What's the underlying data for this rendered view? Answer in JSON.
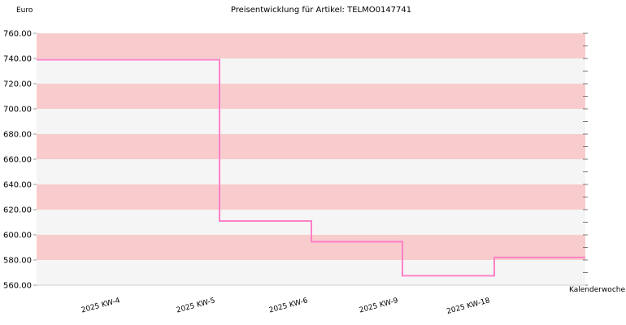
{
  "chart_data": {
    "type": "line",
    "step": true,
    "title": "Preisentwicklung für Artikel: TELMO0147741",
    "ylabel": "Euro",
    "xlabel": "Kalenderwoche",
    "ylim": [
      560,
      760
    ],
    "yticks": [
      "560.00",
      "580.00",
      "600.00",
      "620.00",
      "640.00",
      "660.00",
      "680.00",
      "700.00",
      "720.00",
      "740.00",
      "760.00"
    ],
    "categories": [
      "2025 KW-4",
      "2025 KW-5",
      "2025 KW-6",
      "2025 KW-9",
      "2025 KW-18"
    ],
    "series": [
      {
        "values": [
          739.0,
          611.0,
          594.5,
          567.5,
          582.0
        ]
      }
    ],
    "grid": true,
    "band_colors": [
      "#f8cccc",
      "#f5f5f5"
    ],
    "line_color": "#ff80c8"
  }
}
